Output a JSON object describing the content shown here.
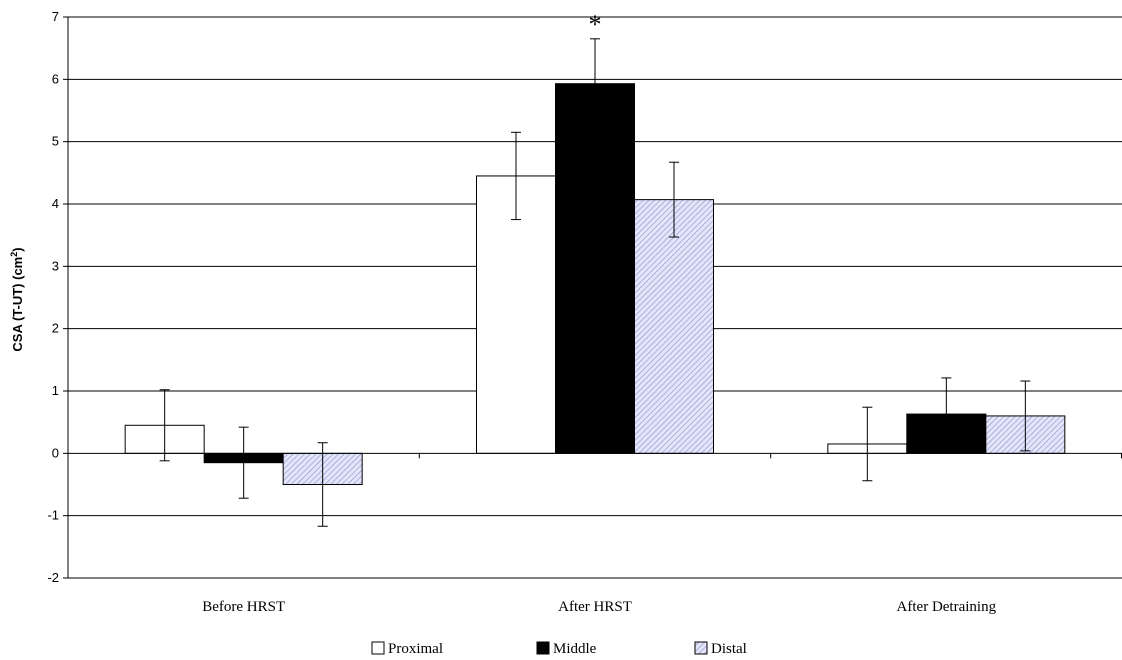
{
  "chart_data": {
    "type": "bar",
    "categories": [
      "Before HRST",
      "After HRST",
      "After Detraining"
    ],
    "series": [
      {
        "name": "Proximal",
        "values": [
          0.45,
          4.45,
          0.15
        ],
        "errors": [
          0.57,
          0.7,
          0.59
        ],
        "fill": "#ffffff",
        "pattern": "none"
      },
      {
        "name": "Middle",
        "values": [
          -0.15,
          5.93,
          0.63
        ],
        "errors": [
          0.57,
          0.72,
          0.58
        ],
        "fill": "#000000",
        "pattern": "none"
      },
      {
        "name": "Distal",
        "values": [
          -0.5,
          4.07,
          0.6
        ],
        "errors": [
          0.67,
          0.6,
          0.56
        ],
        "fill": "#d6d9f5",
        "pattern": "diagonal-hatch"
      }
    ],
    "ylabel_main": "CSA (T-UT) (cm",
    "ylabel_sup": "2",
    "ylabel_end": ")",
    "ylim": [
      -2,
      7
    ],
    "yticks": [
      "-2",
      "-1",
      "0",
      "1",
      "2",
      "3",
      "4",
      "5",
      "6",
      "7"
    ],
    "grid": true,
    "legend_position": "bottom",
    "annotations": [
      {
        "text": "*",
        "category": "After HRST",
        "series": "Middle"
      }
    ]
  }
}
